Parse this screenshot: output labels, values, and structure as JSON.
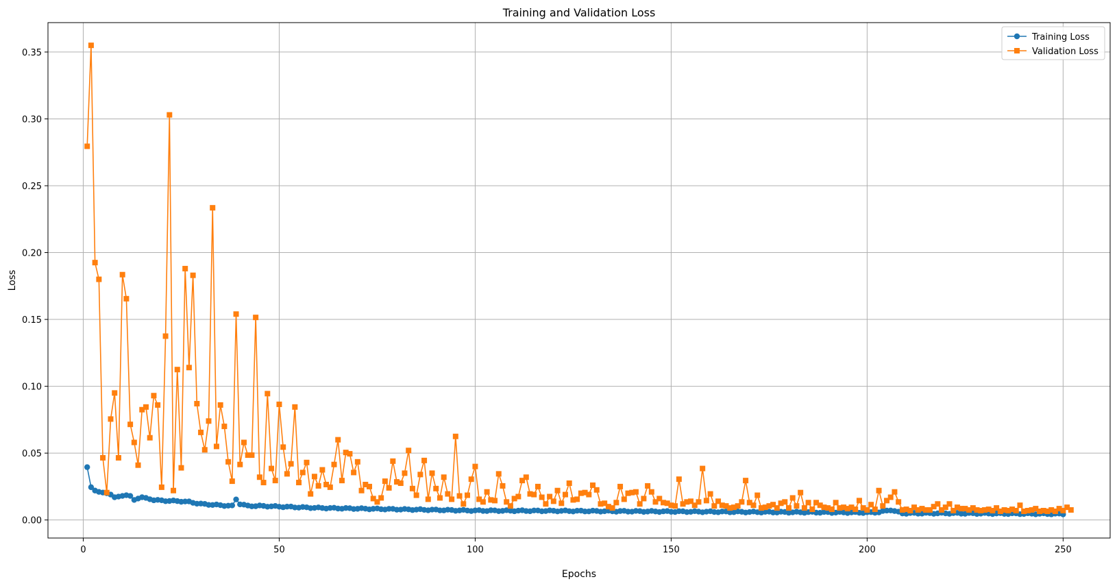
{
  "chart_data": {
    "type": "line",
    "title": "Training and Validation Loss",
    "xlabel": "Epochs",
    "ylabel": "Loss",
    "xlim": [
      -9,
      262
    ],
    "ylim": [
      -0.0135,
      0.372
    ],
    "xticks": [
      0,
      50,
      100,
      150,
      200,
      250
    ],
    "yticks": [
      0.0,
      0.05,
      0.1,
      0.15,
      0.2,
      0.25,
      0.3,
      0.35
    ],
    "ytick_labels": [
      "0.00",
      "0.05",
      "0.10",
      "0.15",
      "0.20",
      "0.25",
      "0.30",
      "0.35"
    ],
    "grid": true,
    "legend_position": "top-right",
    "series": [
      {
        "name": "Training Loss",
        "color": "#1f77b4",
        "marker": "circle",
        "anchors": [
          [
            1,
            0.0395
          ],
          [
            2,
            0.0245
          ],
          [
            3,
            0.022
          ],
          [
            4,
            0.021
          ],
          [
            5,
            0.0205
          ],
          [
            6,
            0.02
          ],
          [
            7,
            0.019
          ],
          [
            8,
            0.017
          ],
          [
            9,
            0.0175
          ],
          [
            10,
            0.018
          ],
          [
            11,
            0.0185
          ],
          [
            12,
            0.018
          ],
          [
            13,
            0.015
          ],
          [
            14,
            0.016
          ],
          [
            15,
            0.017
          ],
          [
            16,
            0.0165
          ],
          [
            18,
            0.015
          ],
          [
            20,
            0.0145
          ],
          [
            25,
            0.014
          ],
          [
            27,
            0.0135
          ],
          [
            30,
            0.012
          ],
          [
            35,
            0.011
          ],
          [
            38,
            0.0105
          ],
          [
            39,
            0.0155
          ],
          [
            40,
            0.012
          ],
          [
            42,
            0.0105
          ],
          [
            45,
            0.0105
          ],
          [
            50,
            0.01
          ],
          [
            60,
            0.009
          ],
          [
            70,
            0.0085
          ],
          [
            80,
            0.008
          ],
          [
            90,
            0.0075
          ],
          [
            100,
            0.007
          ],
          [
            120,
            0.0068
          ],
          [
            150,
            0.0063
          ],
          [
            180,
            0.0058
          ],
          [
            200,
            0.0055
          ],
          [
            203,
            0.0058
          ],
          [
            206,
            0.0075
          ],
          [
            209,
            0.005
          ],
          [
            220,
            0.005
          ],
          [
            250,
            0.0045
          ]
        ]
      },
      {
        "name": "Validation Loss",
        "color": "#ff7f0e",
        "marker": "square",
        "values": [
          0.2795,
          0.355,
          0.1925,
          0.18,
          0.0465,
          0.0205,
          0.0755,
          0.095,
          0.0465,
          0.1835,
          0.1655,
          0.0715,
          0.058,
          0.041,
          0.0825,
          0.0845,
          0.0615,
          0.093,
          0.086,
          0.0245,
          0.1375,
          0.303,
          0.022,
          0.1125,
          0.039,
          0.188,
          0.114,
          0.183,
          0.087,
          0.0655,
          0.0525,
          0.074,
          0.2335,
          0.055,
          0.086,
          0.07,
          0.0435,
          0.029,
          0.154,
          0.0415,
          0.058,
          0.0485,
          0.0485,
          0.1515,
          0.032,
          0.028,
          0.0945,
          0.0385,
          0.0295,
          0.0865,
          0.0545,
          0.0345,
          0.042,
          0.0845,
          0.028,
          0.0355,
          0.043,
          0.0195,
          0.0325,
          0.0255,
          0.0375,
          0.0265,
          0.0245,
          0.0415,
          0.06,
          0.0295,
          0.0505,
          0.0495,
          0.0355,
          0.0435,
          0.022,
          0.0265,
          0.025,
          0.016,
          0.0135,
          0.0165,
          0.029,
          0.024,
          0.044,
          0.0285,
          0.0275,
          0.035,
          0.052,
          0.0235,
          0.0185,
          0.034,
          0.0445,
          0.0155,
          0.035,
          0.0235,
          0.0165,
          0.032,
          0.0195,
          0.0155,
          0.0625,
          0.018,
          0.012,
          0.0185,
          0.0305,
          0.04,
          0.0155,
          0.0135,
          0.021,
          0.015,
          0.0145,
          0.0345,
          0.0255,
          0.0135,
          0.0105,
          0.016,
          0.0175,
          0.0295,
          0.032,
          0.0195,
          0.019,
          0.025,
          0.017,
          0.012,
          0.0175,
          0.014,
          0.022,
          0.0125,
          0.019,
          0.0275,
          0.015,
          0.0155,
          0.02,
          0.0205,
          0.019,
          0.026,
          0.0225,
          0.012,
          0.0125,
          0.01,
          0.009,
          0.013,
          0.025,
          0.0155,
          0.02,
          0.0205,
          0.021,
          0.012,
          0.016,
          0.0255,
          0.021,
          0.0135,
          0.016,
          0.013,
          0.0125,
          0.011,
          0.0105,
          0.0305,
          0.012,
          0.0135,
          0.014,
          0.011,
          0.0135,
          0.0385,
          0.0145,
          0.0195,
          0.0105,
          0.014,
          0.011,
          0.0105,
          0.009,
          0.0095,
          0.0105,
          0.0135,
          0.0295,
          0.013,
          0.011,
          0.0185,
          0.009,
          0.0095,
          0.0105,
          0.0115,
          0.009,
          0.0125,
          0.0135,
          0.009,
          0.0165,
          0.0105,
          0.0205,
          0.009,
          0.013,
          0.008,
          0.013,
          0.011,
          0.0095,
          0.009,
          0.008,
          0.013,
          0.009,
          0.0095,
          0.0085,
          0.0095,
          0.008,
          0.0145,
          0.009,
          0.0075,
          0.0115,
          0.008,
          0.022,
          0.0105,
          0.0145,
          0.017,
          0.021,
          0.0135,
          0.0075,
          0.008,
          0.007,
          0.0095,
          0.0075,
          0.0085,
          0.0075,
          0.0075,
          0.01,
          0.012,
          0.0075,
          0.0095,
          0.012,
          0.007,
          0.0095,
          0.0085,
          0.0085,
          0.0075,
          0.009,
          0.0075,
          0.007,
          0.0075,
          0.008,
          0.007,
          0.009,
          0.0065,
          0.0075,
          0.007,
          0.008,
          0.007,
          0.011,
          0.0065,
          0.007,
          0.0075,
          0.0085,
          0.0065,
          0.007,
          0.0065,
          0.0075,
          0.0065,
          0.0085,
          0.007,
          0.0095,
          0.0075
        ]
      }
    ]
  }
}
